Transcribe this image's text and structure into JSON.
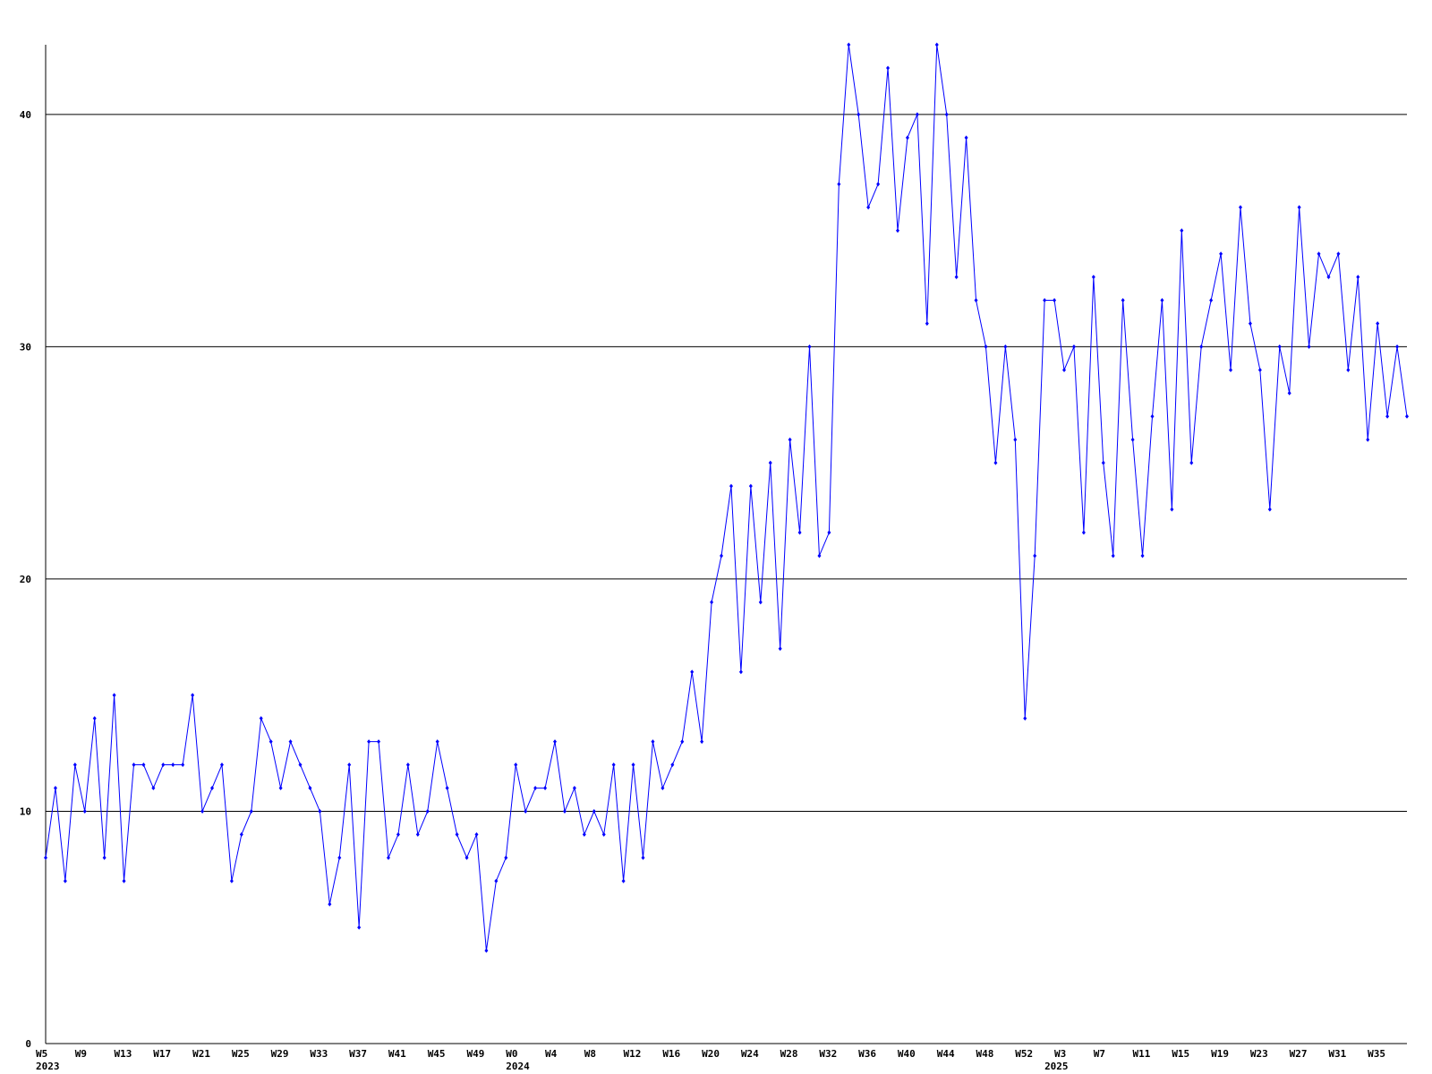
{
  "chart_data": {
    "type": "line",
    "color": "#0000ff",
    "grid": true,
    "ylim": [
      0,
      43
    ],
    "yticks": [
      0,
      10,
      20,
      30,
      40
    ],
    "categories": [
      "W5",
      null,
      null,
      null,
      "W9",
      null,
      null,
      null,
      "W13",
      null,
      null,
      null,
      "W17",
      null,
      null,
      null,
      "W21",
      null,
      null,
      null,
      "W25",
      null,
      null,
      null,
      "W29",
      null,
      null,
      null,
      "W33",
      null,
      null,
      null,
      "W37",
      null,
      null,
      null,
      "W41",
      null,
      null,
      null,
      "W45",
      null,
      null,
      null,
      "W49",
      null,
      null,
      null,
      "W0",
      null,
      null,
      null,
      "W4",
      null,
      null,
      null,
      "W8",
      null,
      null,
      null,
      "W12",
      null,
      null,
      null,
      "W16",
      null,
      null,
      null,
      "W20",
      null,
      null,
      null,
      "W24",
      null,
      null,
      null,
      "W28",
      null,
      null,
      null,
      "W32",
      null,
      null,
      null,
      "W36",
      null,
      null,
      null,
      "W40",
      null,
      null,
      null,
      "W44",
      null,
      null,
      null,
      "W48",
      null,
      null,
      null,
      "W52",
      null,
      null,
      null,
      "W3",
      null,
      null,
      null,
      "W7",
      null,
      null,
      null,
      "W11",
      null,
      null,
      null,
      "W15",
      null,
      null,
      null,
      "W19",
      null,
      null,
      null,
      "W23",
      null,
      null,
      null,
      "W27",
      null,
      null,
      null,
      "W31",
      null,
      null,
      null,
      "W35",
      null,
      null,
      null
    ],
    "year_labels": [
      "2023",
      null,
      null,
      null,
      null,
      null,
      null,
      null,
      null,
      null,
      null,
      null,
      null,
      null,
      null,
      null,
      null,
      null,
      null,
      null,
      null,
      null,
      null,
      null,
      null,
      null,
      null,
      null,
      null,
      null,
      null,
      null,
      null,
      null,
      null,
      null,
      null,
      null,
      null,
      null,
      null,
      null,
      null,
      null,
      null,
      null,
      null,
      null,
      "2024",
      null,
      null,
      null,
      null,
      null,
      null,
      null,
      null,
      null,
      null,
      null,
      null,
      null,
      null,
      null,
      null,
      null,
      null,
      null,
      null,
      null,
      null,
      null,
      null,
      null,
      null,
      null,
      null,
      null,
      null,
      null,
      null,
      null,
      null,
      null,
      null,
      null,
      null,
      null,
      null,
      null,
      null,
      null,
      null,
      null,
      null,
      null,
      null,
      null,
      null,
      null,
      null,
      null,
      null,
      "2025",
      null,
      null,
      null,
      null,
      null,
      null,
      null,
      null,
      null,
      null,
      null,
      null,
      null,
      null,
      null,
      null,
      null,
      null,
      null,
      null,
      null,
      null,
      null,
      null,
      null,
      null,
      null,
      null,
      null,
      null,
      null,
      null,
      null,
      null,
      null,
      null,
      null
    ],
    "values": [
      8,
      11,
      7,
      12,
      10,
      14,
      8,
      15,
      7,
      12,
      12,
      11,
      12,
      12,
      12,
      15,
      10,
      11,
      12,
      7,
      9,
      10,
      14,
      13,
      11,
      13,
      12,
      11,
      10,
      6,
      8,
      12,
      5,
      13,
      13,
      8,
      9,
      12,
      9,
      10,
      13,
      11,
      9,
      8,
      9,
      4,
      7,
      8,
      12,
      10,
      11,
      11,
      13,
      10,
      11,
      9,
      10,
      9,
      12,
      7,
      12,
      8,
      13,
      11,
      12,
      13,
      16,
      13,
      19,
      21,
      24,
      16,
      24,
      19,
      25,
      17,
      26,
      22,
      30,
      21,
      22,
      37,
      43,
      40,
      36,
      37,
      42,
      35,
      39,
      40,
      31,
      43,
      40,
      33,
      39,
      32,
      30,
      25,
      30,
      26,
      14,
      21,
      32,
      32,
      29,
      30,
      22,
      33,
      25,
      21,
      32,
      26,
      21,
      27,
      32,
      23,
      35,
      25,
      30,
      32,
      34,
      29,
      36,
      31,
      29,
      23,
      30,
      28,
      36,
      30,
      34,
      33,
      34,
      29,
      33,
      26,
      31,
      27,
      30,
      27
    ]
  }
}
